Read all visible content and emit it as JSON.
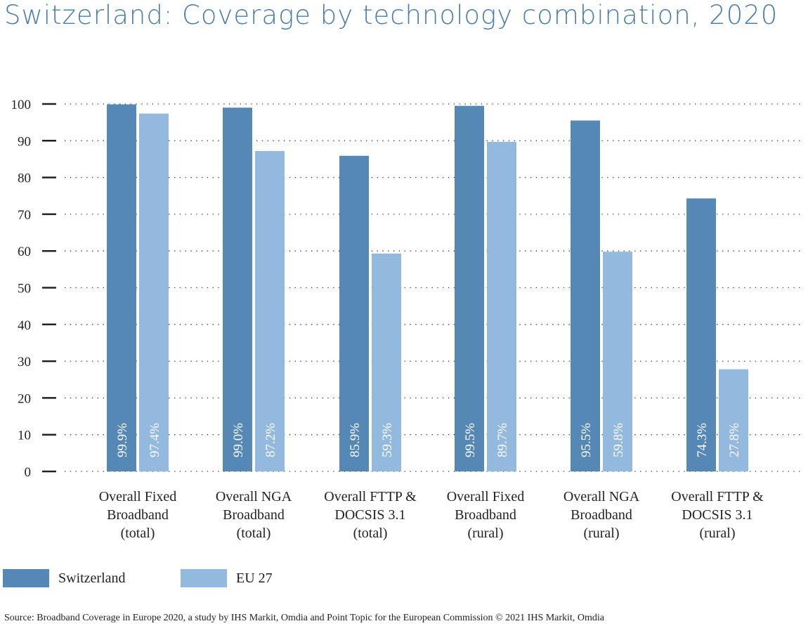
{
  "title": "Switzerland: Coverage by technology combination, 2020",
  "source": "Source: Broadband Coverage in Europe 2020, a study by IHS Markit, Omdia and Point Topic for the European Commission  © 2021 IHS Markit, Omdia",
  "legend": [
    {
      "name": "Switzerland",
      "color": "#5688b5"
    },
    {
      "name": "EU 27",
      "color": "#94b9de"
    }
  ],
  "chart_data": {
    "type": "bar",
    "categories": [
      [
        "Overall Fixed",
        "Broadband",
        "(total)"
      ],
      [
        "Overall NGA",
        "Broadband",
        "(total)"
      ],
      [
        "Overall FTTP &",
        "DOCSIS 3.1",
        "(total)"
      ],
      [
        "Overall Fixed",
        "Broadband",
        "(rural)"
      ],
      [
        "Overall NGA",
        "Broadband",
        "(rural)"
      ],
      [
        "Overall FTTP &",
        "DOCSIS 3.1",
        "(rural)"
      ]
    ],
    "series": [
      {
        "name": "Switzerland",
        "color": "#5688b5",
        "values": [
          99.9,
          99.0,
          85.9,
          99.5,
          95.5,
          74.3
        ],
        "labels": [
          "99.9%",
          "99.0%",
          "85.9%",
          "99.5%",
          "95.5%",
          "74.3%"
        ]
      },
      {
        "name": "EU 27",
        "color": "#94b9de",
        "values": [
          97.4,
          87.2,
          59.3,
          89.7,
          59.8,
          27.8
        ],
        "labels": [
          "97.4%",
          "87.2%",
          "59.3%",
          "89.7%",
          "59.8%",
          "27.8%"
        ]
      }
    ],
    "ylim": [
      0,
      100
    ],
    "yticks": [
      "0",
      "10",
      "20",
      "30",
      "40",
      "50",
      "60",
      "70",
      "80",
      "90",
      "100"
    ],
    "grid": true,
    "legend_position": "bottom-left"
  }
}
